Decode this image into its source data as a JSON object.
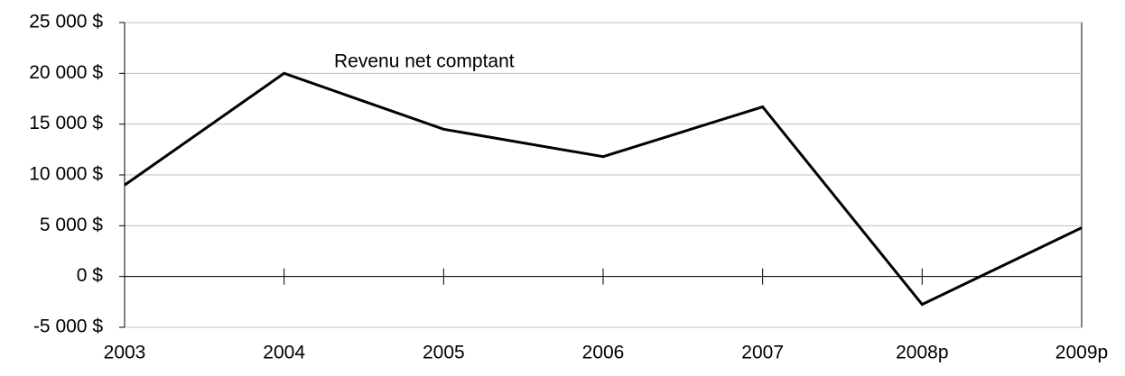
{
  "chart_data": {
    "type": "line",
    "categories": [
      "2003",
      "2004",
      "2005",
      "2006",
      "2007",
      "2008p",
      "2009p"
    ],
    "series": [
      {
        "name": "Revenu net comptant",
        "color": "#000000",
        "values": [
          9000,
          20000,
          14500,
          11800,
          16700,
          -2750,
          4800
        ]
      }
    ],
    "ylim": [
      -5000,
      25000
    ],
    "yticks": [
      {
        "value": -5000,
        "label": "-5 000 $"
      },
      {
        "value": 0,
        "label": "0 $"
      },
      {
        "value": 5000,
        "label": "5 000 $"
      },
      {
        "value": 10000,
        "label": "10 000 $"
      },
      {
        "value": 15000,
        "label": "15 000 $"
      },
      {
        "value": 20000,
        "label": "20 000 $"
      },
      {
        "value": 25000,
        "label": "25 000 $"
      }
    ],
    "grid": true
  }
}
